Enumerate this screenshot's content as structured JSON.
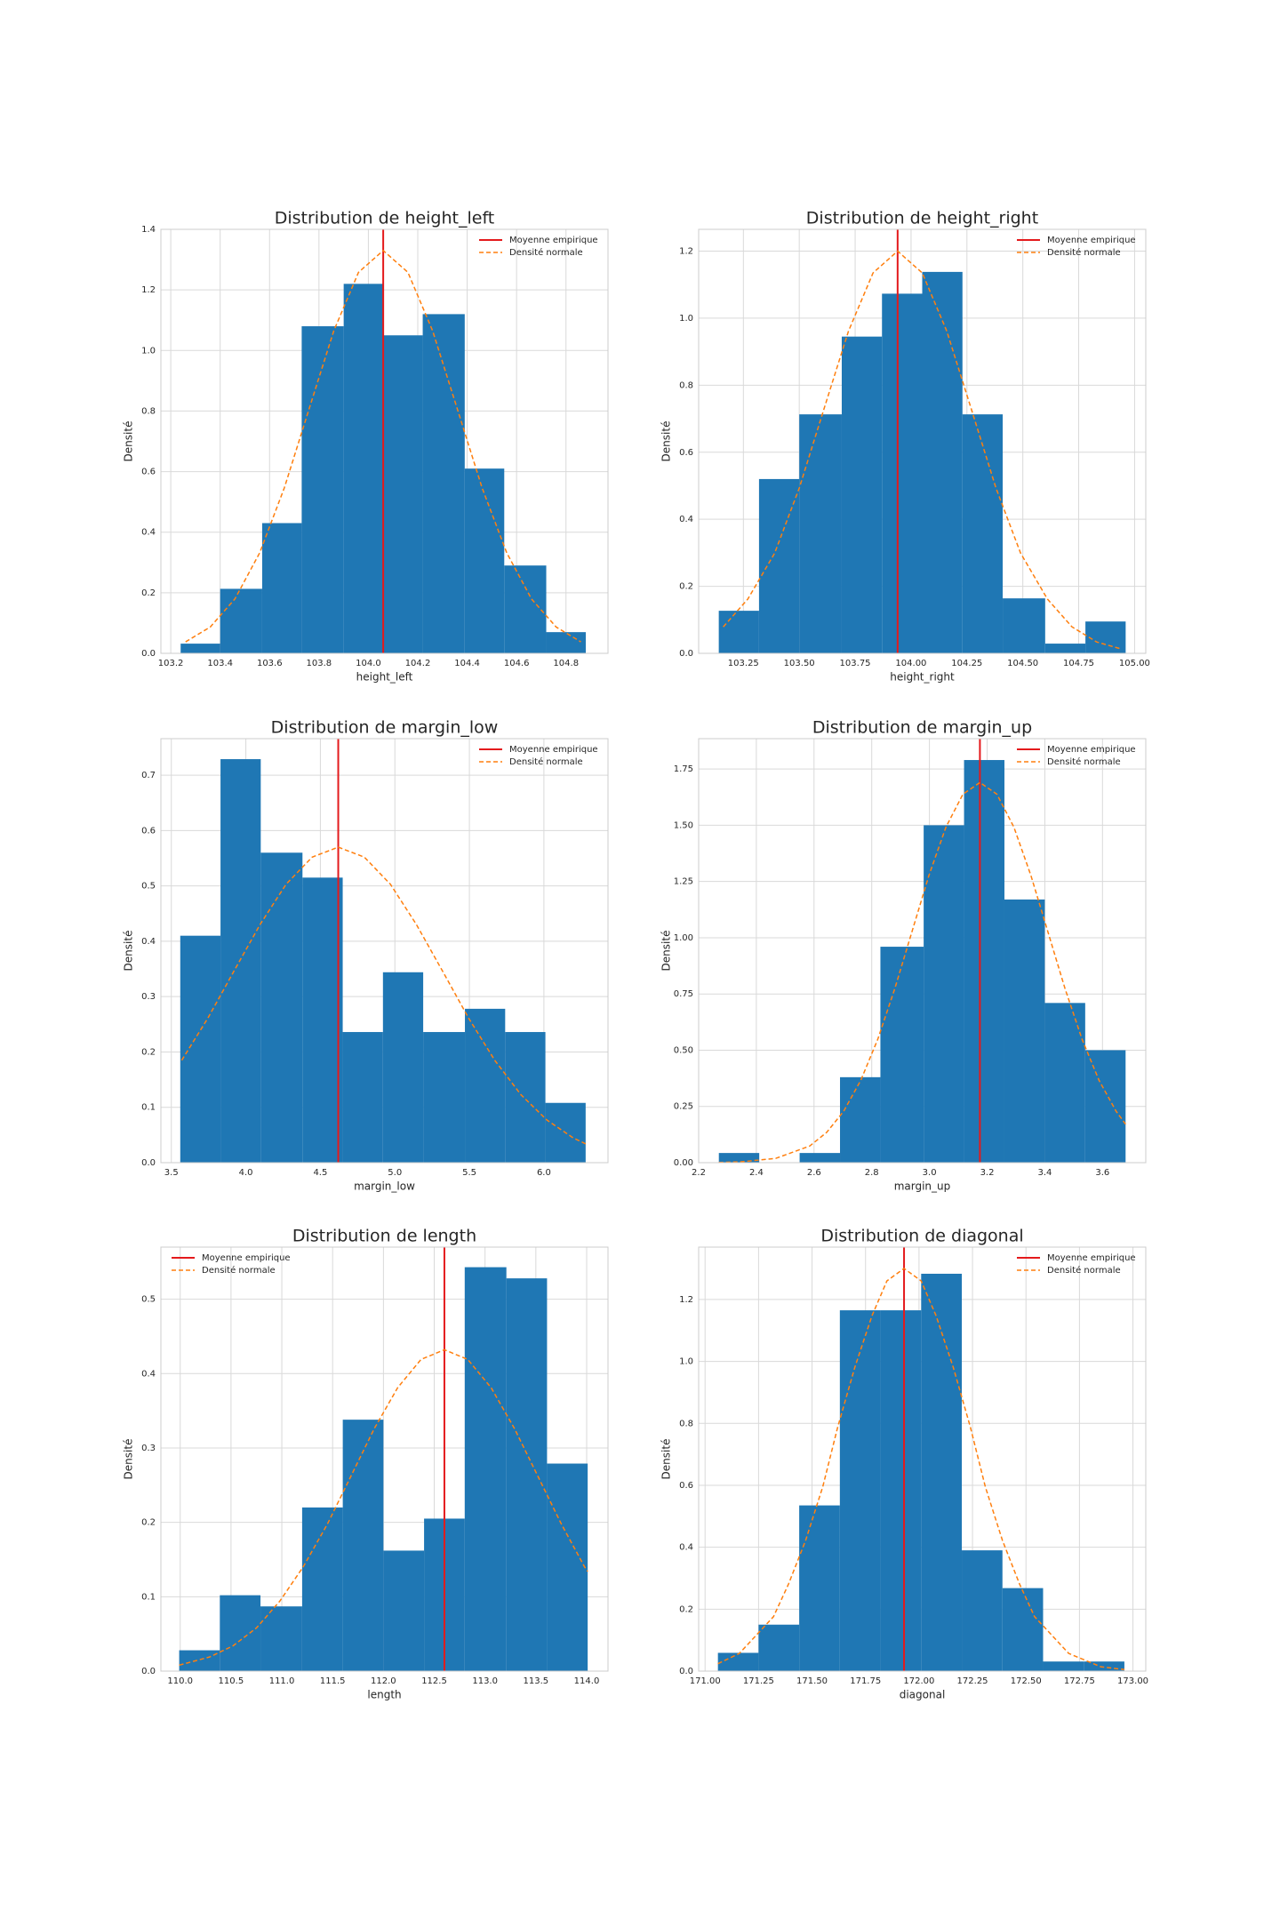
{
  "chart_data": [
    {
      "type": "histogram",
      "title": "Distribution de height_left",
      "xlabel": "height_left",
      "ylabel": "Densité",
      "bins": [
        103.24,
        103.4,
        103.57,
        103.73,
        103.9,
        104.06,
        104.22,
        104.39,
        104.55,
        104.72,
        104.88
      ],
      "values": [
        0.032,
        0.213,
        0.43,
        1.08,
        1.22,
        1.05,
        1.12,
        0.61,
        0.29,
        0.07
      ],
      "color": "#1f77b4",
      "mean_line": {
        "name": "Moyenne empirique",
        "x": 104.06,
        "color": "#e41a1c"
      },
      "curve": {
        "name": "Densité normale",
        "color": "#ff7f0e",
        "linestyle": "dashed",
        "x": [
          103.26,
          103.36,
          103.46,
          103.56,
          103.66,
          103.76,
          103.86,
          103.96,
          104.06,
          104.16,
          104.26,
          104.36,
          104.46,
          104.56,
          104.66,
          104.76,
          104.86
        ],
        "values": [
          0.038,
          0.087,
          0.18,
          0.332,
          0.547,
          0.807,
          1.065,
          1.258,
          1.33,
          1.258,
          1.065,
          0.807,
          0.547,
          0.332,
          0.18,
          0.087,
          0.038
        ]
      },
      "xlim": [
        103.16,
        104.97
      ],
      "ylim": [
        0,
        1.4
      ],
      "xticks": [
        103.2,
        103.4,
        103.6,
        103.8,
        {
          "value": 104,
          "label": "104.0"
        },
        104.2,
        104.4,
        104.6,
        104.8
      ],
      "yticks": [
        {
          "value": 0,
          "label": "0.0"
        },
        0.2,
        0.4,
        0.6,
        0.8,
        {
          "value": 1,
          "label": "1.0"
        },
        1.2,
        1.4
      ],
      "grid": true,
      "legend": "upper right"
    },
    {
      "type": "histogram",
      "title": "Distribution de height_right",
      "xlabel": "height_right",
      "ylabel": "Densité",
      "bins": [
        103.14,
        103.32,
        103.5,
        103.69,
        103.87,
        104.05,
        104.23,
        104.41,
        104.6,
        104.78,
        104.96
      ],
      "values": [
        0.127,
        0.52,
        0.713,
        0.945,
        1.073,
        1.138,
        0.713,
        0.164,
        0.029,
        0.095
      ],
      "color": "#1f77b4",
      "mean_line": {
        "name": "Moyenne empirique",
        "x": 103.94,
        "color": "#e41a1c"
      },
      "curve": {
        "name": "Densité normale",
        "color": "#ff7f0e",
        "linestyle": "dashed",
        "x": [
          103.16,
          103.27,
          103.39,
          103.5,
          103.61,
          103.72,
          103.83,
          103.94,
          104.05,
          104.16,
          104.27,
          104.38,
          104.49,
          104.61,
          104.72,
          104.83,
          104.94
        ],
        "values": [
          0.079,
          0.162,
          0.299,
          0.493,
          0.728,
          0.961,
          1.135,
          1.2,
          1.135,
          0.961,
          0.728,
          0.493,
          0.299,
          0.162,
          0.079,
          0.034,
          0.013
        ]
      },
      "xlim": [
        103.05,
        105.05
      ],
      "ylim": [
        0,
        1.265
      ],
      "xticks": [
        103.25,
        {
          "value": 103.5,
          "label": "103.50"
        },
        103.75,
        {
          "value": 104,
          "label": "104.00"
        },
        104.25,
        {
          "value": 104.5,
          "label": "104.50"
        },
        104.75,
        {
          "value": 105,
          "label": "105.00"
        }
      ],
      "yticks": [
        {
          "value": 0,
          "label": "0.0"
        },
        0.2,
        0.4,
        0.6,
        0.8,
        {
          "value": 1,
          "label": "1.0"
        },
        1.2
      ],
      "grid": true,
      "legend": "upper right"
    },
    {
      "type": "histogram",
      "title": "Distribution de margin_low",
      "xlabel": "margin_low",
      "ylabel": "Densité",
      "bins": [
        3.56,
        3.83,
        4.1,
        4.38,
        4.65,
        4.92,
        5.19,
        5.47,
        5.74,
        6.01,
        6.28
      ],
      "values": [
        0.41,
        0.729,
        0.56,
        0.515,
        0.236,
        0.344,
        0.236,
        0.278,
        0.236,
        0.108
      ],
      "color": "#1f77b4",
      "mean_line": {
        "name": "Moyenne empirique",
        "x": 4.62,
        "color": "#e41a1c"
      },
      "curve": {
        "name": "Densité normale",
        "color": "#ff7f0e",
        "linestyle": "dashed",
        "x": [
          3.57,
          3.745,
          3.92,
          4.095,
          4.27,
          4.445,
          4.62,
          4.795,
          4.97,
          5.145,
          5.32,
          5.495,
          5.67,
          5.845,
          6.02,
          6.195,
          6.28
        ],
        "values": [
          0.185,
          0.261,
          0.346,
          0.43,
          0.503,
          0.552,
          0.57,
          0.552,
          0.503,
          0.43,
          0.346,
          0.261,
          0.185,
          0.123,
          0.077,
          0.045,
          0.034
        ]
      },
      "xlim": [
        3.43,
        6.43
      ],
      "ylim": [
        0,
        0.766
      ],
      "xticks": [
        3.5,
        {
          "value": 4,
          "label": "4.0"
        },
        4.5,
        {
          "value": 5,
          "label": "5.0"
        },
        5.5,
        {
          "value": 6,
          "label": "6.0"
        }
      ],
      "yticks": [
        {
          "value": 0,
          "label": "0.0"
        },
        0.1,
        0.2,
        0.3,
        0.4,
        0.5,
        0.6,
        0.7
      ],
      "grid": true,
      "legend": "upper right"
    },
    {
      "type": "histogram",
      "title": "Distribution de margin_up",
      "xlabel": "margin_up",
      "ylabel": "Densité",
      "bins": [
        2.27,
        2.41,
        2.55,
        2.69,
        2.83,
        2.98,
        3.12,
        3.26,
        3.4,
        3.54,
        3.68
      ],
      "values": [
        0.043,
        0,
        0.043,
        0.38,
        0.96,
        1.5,
        1.79,
        1.17,
        0.71,
        0.5
      ],
      "color": "#1f77b4",
      "mean_line": {
        "name": "Moyenne empirique",
        "x": 3.175,
        "color": "#e41a1c"
      },
      "curve": {
        "name": "Densité normale",
        "color": "#ff7f0e",
        "linestyle": "dashed",
        "x": [
          2.27,
          2.348,
          2.467,
          2.585,
          2.644,
          2.703,
          2.762,
          2.821,
          2.88,
          2.939,
          2.998,
          3.057,
          3.116,
          3.175,
          3.234,
          3.293,
          3.352,
          3.411,
          3.47,
          3.529,
          3.588,
          3.647,
          3.68
        ],
        "values": [
          0.001,
          0.004,
          0.019,
          0.074,
          0.135,
          0.229,
          0.366,
          0.549,
          0.774,
          1.025,
          1.276,
          1.491,
          1.638,
          1.69,
          1.638,
          1.491,
          1.276,
          1.025,
          0.774,
          0.549,
          0.366,
          0.229,
          0.171
        ]
      },
      "xlim": [
        2.2,
        3.75
      ],
      "ylim": [
        0,
        1.885
      ],
      "xticks": [
        2.2,
        2.4,
        2.6,
        2.8,
        {
          "value": 3,
          "label": "3.0"
        },
        3.2,
        3.4,
        3.6
      ],
      "yticks": [
        {
          "value": 0,
          "label": "0.00"
        },
        0.25,
        {
          "value": 0.5,
          "label": "0.50"
        },
        0.75,
        {
          "value": 1,
          "label": "1.00"
        },
        1.25,
        {
          "value": 1.5,
          "label": "1.50"
        },
        1.75
      ],
      "grid": true,
      "legend": "upper right"
    },
    {
      "type": "histogram",
      "title": "Distribution de length",
      "xlabel": "length",
      "ylabel": "Densité",
      "bins": [
        109.99,
        110.39,
        110.79,
        111.2,
        111.6,
        112,
        112.4,
        112.8,
        113.21,
        113.61,
        114.01
      ],
      "values": [
        0.028,
        0.102,
        0.087,
        0.22,
        0.338,
        0.162,
        0.205,
        0.543,
        0.528,
        0.279
      ],
      "color": "#1f77b4",
      "mean_line": {
        "name": "Moyenne empirique",
        "x": 112.6,
        "color": "#e41a1c"
      },
      "curve": {
        "name": "Densité normale",
        "color": "#ff7f0e",
        "linestyle": "dashed",
        "x": [
          109.99,
          110.29,
          110.52,
          110.75,
          110.98,
          111.21,
          111.45,
          111.68,
          111.91,
          112.14,
          112.37,
          112.6,
          112.83,
          113.06,
          113.29,
          113.52,
          113.75,
          113.98,
          114.01
        ],
        "values": [
          0.008,
          0.019,
          0.034,
          0.058,
          0.094,
          0.14,
          0.198,
          0.262,
          0.326,
          0.381,
          0.419,
          0.432,
          0.419,
          0.381,
          0.326,
          0.262,
          0.198,
          0.14,
          0.134
        ]
      },
      "xlim": [
        109.81,
        114.21
      ],
      "ylim": [
        0,
        0.57
      ],
      "xticks": [
        {
          "value": 110,
          "label": "110.0"
        },
        110.5,
        {
          "value": 111,
          "label": "111.0"
        },
        111.5,
        {
          "value": 112,
          "label": "112.0"
        },
        112.5,
        {
          "value": 113,
          "label": "113.0"
        },
        113.5,
        {
          "value": 114,
          "label": "114.0"
        }
      ],
      "yticks": [
        {
          "value": 0,
          "label": "0.0"
        },
        0.1,
        0.2,
        0.3,
        0.4,
        0.5
      ],
      "grid": true,
      "legend": "upper left"
    },
    {
      "type": "histogram",
      "title": "Distribution de diagonal",
      "xlabel": "diagonal",
      "ylabel": "Densité",
      "bins": [
        171.06,
        171.25,
        171.44,
        171.63,
        171.82,
        172.01,
        172.2,
        172.39,
        172.58,
        172.77,
        172.96
      ],
      "values": [
        0.059,
        0.15,
        0.535,
        1.165,
        1.165,
        1.283,
        0.39,
        0.268,
        0.031,
        0.031
      ],
      "color": "#1f77b4",
      "mean_line": {
        "name": "Moyenne empirique",
        "x": 171.93,
        "color": "#e41a1c"
      },
      "curve": {
        "name": "Densité normale",
        "color": "#ff7f0e",
        "linestyle": "dashed",
        "x": [
          171.06,
          171.16,
          171.32,
          171.39,
          171.47,
          171.55,
          171.62,
          171.7,
          171.78,
          171.85,
          171.93,
          172.01,
          172.08,
          172.16,
          172.24,
          172.31,
          172.39,
          172.47,
          172.54,
          172.7,
          172.85,
          172.96
        ],
        "values": [
          0.024,
          0.057,
          0.176,
          0.281,
          0.422,
          0.595,
          0.788,
          0.981,
          1.147,
          1.26,
          1.3,
          1.26,
          1.147,
          0.981,
          0.788,
          0.595,
          0.422,
          0.281,
          0.176,
          0.057,
          0.014,
          0.005
        ]
      },
      "xlim": [
        170.97,
        173.06
      ],
      "ylim": [
        0,
        1.369
      ],
      "xticks": [
        {
          "value": 171,
          "label": "171.00"
        },
        171.25,
        {
          "value": 171.5,
          "label": "171.50"
        },
        171.75,
        {
          "value": 172,
          "label": "172.00"
        },
        172.25,
        {
          "value": 172.5,
          "label": "172.50"
        },
        172.75,
        {
          "value": 173,
          "label": "173.00"
        }
      ],
      "yticks": [
        {
          "value": 0,
          "label": "0.0"
        },
        0.2,
        0.4,
        0.6,
        0.8,
        {
          "value": 1,
          "label": "1.0"
        },
        1.2
      ],
      "grid": true,
      "legend": "upper right"
    }
  ]
}
